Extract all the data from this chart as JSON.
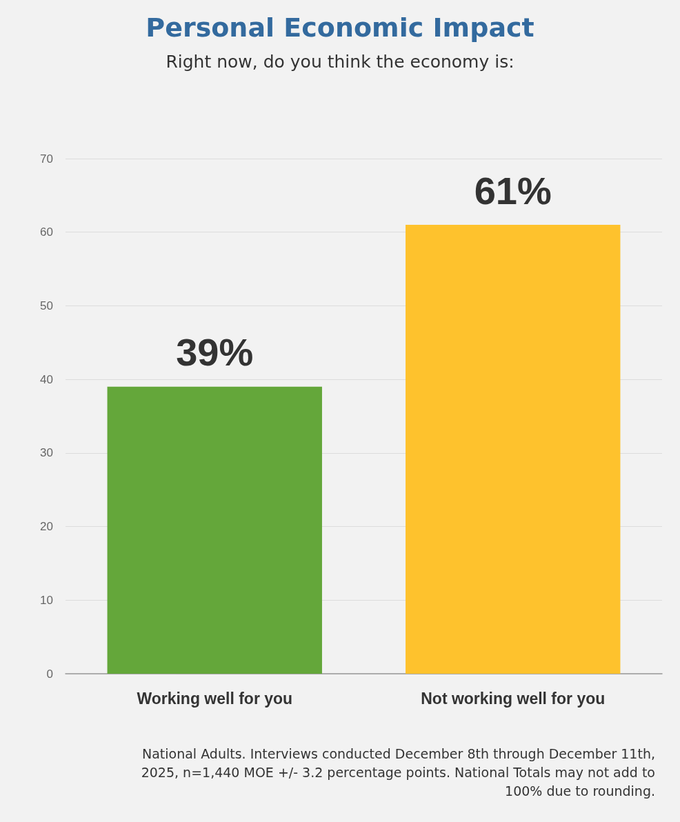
{
  "chart_data": {
    "type": "bar",
    "title": "Personal Economic Impact",
    "subtitle": "Right now, do you think the economy is:",
    "categories": [
      "Working well for you",
      "Not working well for you"
    ],
    "values": [
      39,
      61
    ],
    "colors": [
      "#64a73a",
      "#fec22d"
    ],
    "value_labels": [
      "39%",
      "61%"
    ],
    "ylim": [
      0,
      70
    ],
    "yticks": [
      0,
      10,
      20,
      30,
      40,
      50,
      60,
      70
    ],
    "grid": "y",
    "annotations": [
      "National Adults. Interviews conducted December 8th through December 11th, 2025, n=1,440 MOE +/- 3.2 percentage points. National Totals may not add to 100% due to rounding."
    ]
  }
}
